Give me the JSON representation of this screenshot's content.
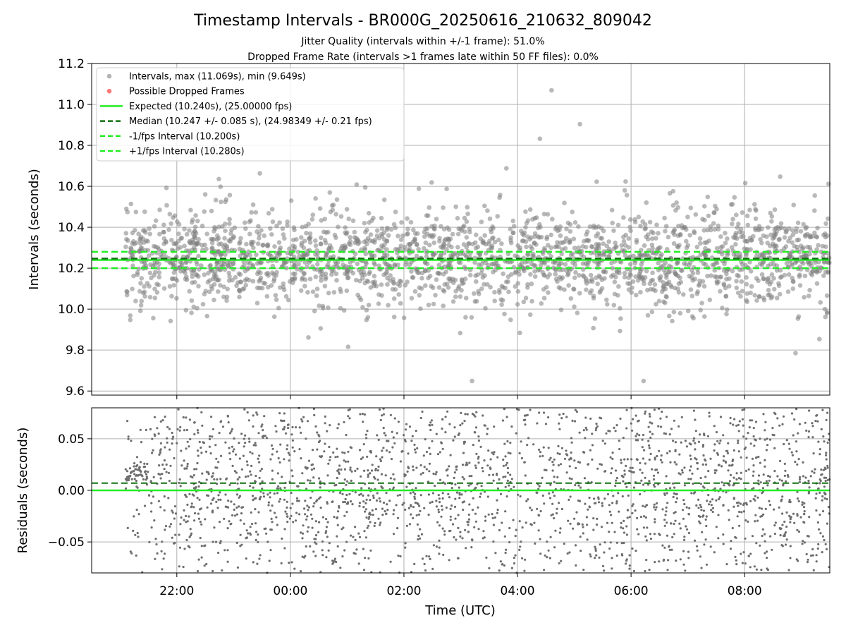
{
  "chart_data": {
    "type": "scatter",
    "title": "Timestamp Intervals - BR000G_20250616_210632_809042",
    "subtitle_lines": [
      "Jitter Quality (intervals within +/-1 frame): 51.0%",
      "Dropped Frame Rate (intervals >1 frames late within 50 FF files): 0.0%"
    ],
    "xlabel": "Time (UTC)",
    "x_ticks": [
      "22:00",
      "00:00",
      "02:00",
      "04:00",
      "06:00",
      "08:00"
    ],
    "x_range_hours": [
      20.5,
      33.5
    ],
    "data_start_hour": 21.1,
    "data_end_hour": 33.5,
    "grid": true,
    "legend_position": "top-left",
    "colors": {
      "points": "#808080",
      "dropped": "#ff4040",
      "expected": "#22ee22",
      "median": "#107010",
      "interval_lines": "#22ee22"
    },
    "top": {
      "ylabel": "Intervals (seconds)",
      "ylim": [
        9.58,
        11.2
      ],
      "y_ticks": [
        "9.6",
        "9.8",
        "10.0",
        "10.2",
        "10.4",
        "10.6",
        "10.8",
        "11.0",
        "11.2"
      ],
      "y_tick_values": [
        9.6,
        9.8,
        10.0,
        10.2,
        10.4,
        10.6,
        10.8,
        11.0,
        11.2
      ],
      "expected": 10.24,
      "median": 10.247,
      "minus_interval": 10.2,
      "plus_interval": 10.28,
      "max": 11.069,
      "min": 9.649,
      "point_count": 2200,
      "legend": [
        {
          "key": "intervals",
          "label": "Intervals, max (11.069s), min (9.649s)"
        },
        {
          "key": "dropped",
          "label": "Possible Dropped Frames"
        },
        {
          "key": "expected",
          "label": "Expected (10.240s), (25.00000 fps)"
        },
        {
          "key": "median",
          "label": "Median (10.247 +/- 0.085 s), (24.98349 +/- 0.21 fps)"
        },
        {
          "key": "minus",
          "label": "-1/fps Interval (10.200s)"
        },
        {
          "key": "plus",
          "label": "+1/fps Interval (10.280s)"
        }
      ]
    },
    "bottom": {
      "ylabel": "Residuals (seconds)",
      "ylim": [
        -0.08,
        0.08
      ],
      "y_ticks": [
        "−0.05",
        "0.00",
        "0.05"
      ],
      "y_tick_values": [
        -0.05,
        0.0,
        0.05
      ],
      "zero_line": 0.0,
      "median_offset": 0.007,
      "point_count": 2800
    }
  }
}
